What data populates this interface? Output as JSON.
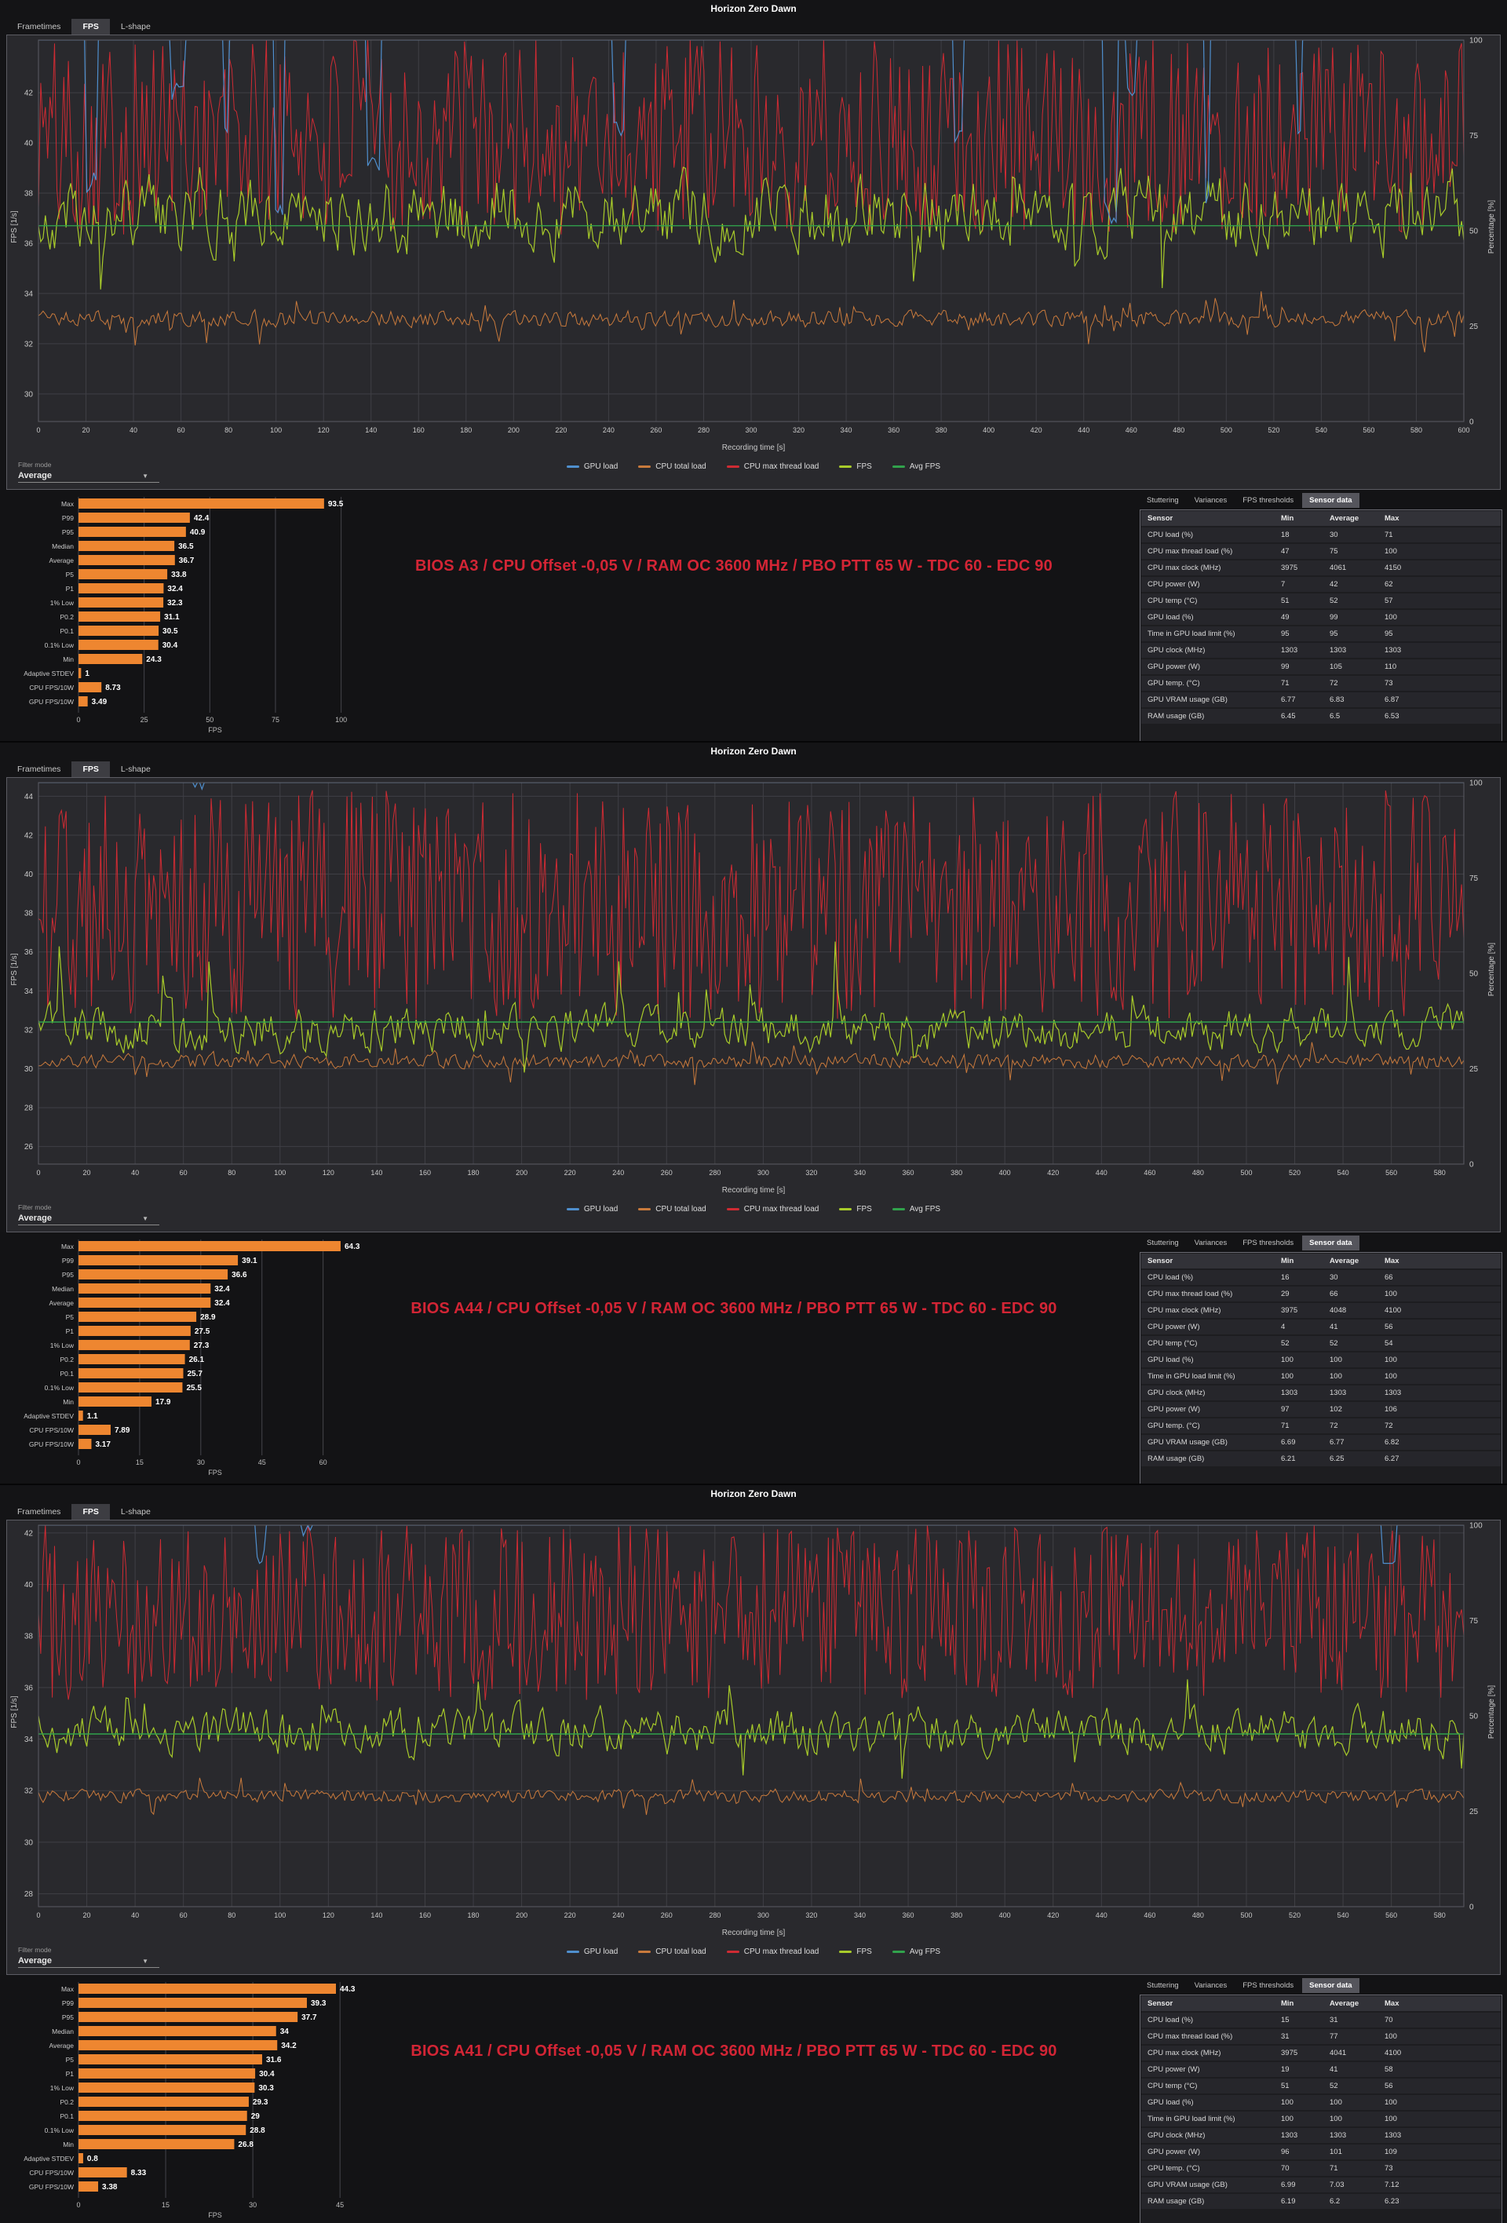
{
  "colors": {
    "gpu_load": "#4f8fce",
    "cpu_total": "#c97a3c",
    "cpu_max_thread": "#cf2b33",
    "fps": "#a8cb2a",
    "avg_fps": "#31a24c",
    "bar": "#ee8630",
    "annotation": "#d32535",
    "grid": "#3f3f45",
    "plot_border": "#5b5b62",
    "tick_text": "#c9c9c9"
  },
  "chart_data": [
    {
      "title": "Horizon Zero Dawn",
      "tabs": [
        "Frametimes",
        "FPS",
        "L-shape"
      ],
      "active_tab": "FPS",
      "annotation": "BIOS A3 / CPU Offset -0,05 V / RAM OC 3600 MHz / PBO PTT 65 W - TDC 60 - EDC 90",
      "filter_mode": {
        "label": "Filter mode",
        "value": "Average"
      },
      "line_chart": {
        "type": "line",
        "xlabel": "Recording time [s]",
        "ylabel": "FPS [1/s]",
        "y2label": "Percentage [%]",
        "xmax": 600,
        "xtick_step": 20,
        "points": 620,
        "yticks": [
          42,
          40,
          38,
          36,
          34,
          32,
          30
        ],
        "ylim": [
          28.9,
          44.1
        ],
        "y2ticks": [
          100,
          75,
          50,
          25,
          0
        ],
        "y2lim": [
          0,
          100
        ],
        "avg_fps": 36.7,
        "legend": [
          "GPU load",
          "CPU total load",
          "CPU max thread load",
          "FPS",
          "Avg FPS"
        ],
        "legend_colors": [
          "gpu_load",
          "cpu_total",
          "cpu_max_thread",
          "fps",
          "avg_fps"
        ],
        "series": [
          {
            "name": "CPU max thread load",
            "color": "cpu_max_thread",
            "axis": "right",
            "w": 1,
            "gen": {
              "kind": "noisy",
              "seed": 101,
              "base": 75,
              "amp": 26,
              "smooth": 0,
              "clamp": [
                47,
                100
              ]
            }
          },
          {
            "name": "CPU total load",
            "color": "cpu_total",
            "axis": "right",
            "w": 1,
            "gen": {
              "kind": "noisy",
              "seed": 102,
              "base": 27,
              "amp": 2.6,
              "smooth": 0.25,
              "spikeP": 0.06,
              "spikeLo": 17,
              "spikeHi": 37,
              "clamp": [
                14,
                45
              ]
            }
          },
          {
            "name": "FPS",
            "color": "fps",
            "axis": "left",
            "w": 1.2,
            "gen": {
              "kind": "noisy",
              "seed": 103,
              "base": 37.2,
              "amp": 2.4,
              "smooth": 0.5,
              "spikeP": 0.03,
              "spikeLo": 28,
              "spikeHi": 41.5,
              "clamp": [
                26.5,
                42.6
              ]
            }
          },
          {
            "name": "Avg FPS",
            "color": "avg_fps",
            "axis": "left",
            "w": 1.4,
            "gen": {
              "kind": "flat",
              "value": 36.7
            }
          },
          {
            "name": "GPU load",
            "color": "gpu_load",
            "axis": "right",
            "w": 1.2,
            "gen": {
              "kind": "pinned",
              "seed": 104,
              "level": 100,
              "dipP": 0.02,
              "dipLo": 52,
              "dipHi": 95
            }
          }
        ]
      },
      "bar_chart": {
        "type": "bar",
        "xlabel": "FPS",
        "xticks": [
          0,
          25,
          50,
          75,
          100
        ],
        "xmax": 104,
        "categories": [
          "Max",
          "P99",
          "P95",
          "Median",
          "Average",
          "P5",
          "P1",
          "1% Low",
          "P0.2",
          "P0.1",
          "0.1% Low",
          "Min",
          "Adaptive STDEV",
          "CPU FPS/10W",
          "GPU FPS/10W"
        ],
        "values": [
          93.5,
          42.4,
          40.9,
          36.5,
          36.7,
          33.8,
          32.4,
          32.3,
          31.1,
          30.5,
          30.4,
          24.3,
          1,
          8.73,
          3.49
        ]
      },
      "sensor": {
        "tabs": [
          "Stuttering",
          "Variances",
          "FPS thresholds",
          "Sensor data"
        ],
        "active_tab": "Sensor data",
        "headers": [
          "Sensor",
          "Min",
          "Average",
          "Max"
        ],
        "rows": [
          [
            "CPU load (%)",
            "18",
            "30",
            "71"
          ],
          [
            "CPU max thread load (%)",
            "47",
            "75",
            "100"
          ],
          [
            "CPU max clock (MHz)",
            "3975",
            "4061",
            "4150"
          ],
          [
            "CPU power (W)",
            "7",
            "42",
            "62"
          ],
          [
            "CPU temp (°C)",
            "51",
            "52",
            "57"
          ],
          [
            "GPU load (%)",
            "49",
            "99",
            "100"
          ],
          [
            "Time in GPU load limit (%)",
            "95",
            "95",
            "95"
          ],
          [
            "GPU clock (MHz)",
            "1303",
            "1303",
            "1303"
          ],
          [
            "GPU power (W)",
            "99",
            "105",
            "110"
          ],
          [
            "GPU temp. (°C)",
            "71",
            "72",
            "73"
          ],
          [
            "GPU VRAM usage (GB)",
            "6.77",
            "6.83",
            "6.87"
          ],
          [
            "RAM usage (GB)",
            "6.45",
            "6.5",
            "6.53"
          ]
        ]
      }
    },
    {
      "title": "Horizon Zero Dawn",
      "tabs": [
        "Frametimes",
        "FPS",
        "L-shape"
      ],
      "active_tab": "FPS",
      "annotation": "BIOS A44 / CPU Offset -0,05 V / RAM OC 3600 MHz / PBO PTT 65 W - TDC 60 - EDC 90",
      "filter_mode": {
        "label": "Filter mode",
        "value": "Average"
      },
      "line_chart": {
        "type": "line",
        "xlabel": "Recording time [s]",
        "ylabel": "FPS [1/s]",
        "y2label": "Percentage [%]",
        "xmax": 590,
        "xtick_step": 20,
        "points": 620,
        "yticks": [
          44,
          42,
          40,
          38,
          36,
          34,
          32,
          30,
          28,
          26
        ],
        "ylim": [
          25.1,
          44.7
        ],
        "y2ticks": [
          100,
          75,
          50,
          25,
          0
        ],
        "y2lim": [
          0,
          100
        ],
        "avg_fps": 32.4,
        "legend": [
          "GPU load",
          "CPU total load",
          "CPU max thread load",
          "FPS",
          "Avg FPS"
        ],
        "legend_colors": [
          "gpu_load",
          "cpu_total",
          "cpu_max_thread",
          "fps",
          "avg_fps"
        ],
        "series": [
          {
            "name": "CPU max thread load",
            "color": "cpu_max_thread",
            "axis": "right",
            "w": 1,
            "gen": {
              "kind": "noisy",
              "seed": 201,
              "base": 68,
              "amp": 30,
              "smooth": 0,
              "clamp": [
                37,
                100
              ]
            }
          },
          {
            "name": "CPU total load",
            "color": "cpu_total",
            "axis": "right",
            "w": 1,
            "gen": {
              "kind": "noisy",
              "seed": 202,
              "base": 27,
              "amp": 2.2,
              "smooth": 0.25,
              "spikeP": 0.05,
              "spikeLo": 18,
              "spikeHi": 34,
              "clamp": [
                15,
                42
              ]
            }
          },
          {
            "name": "FPS",
            "color": "fps",
            "axis": "left",
            "w": 1.2,
            "gen": {
              "kind": "noisy",
              "seed": 203,
              "base": 32,
              "amp": 1.8,
              "smooth": 0.5,
              "spikeP": 0.03,
              "spikeLo": 28,
              "spikeHi": 40.5,
              "clamp": [
                26.5,
                41.5
              ]
            }
          },
          {
            "name": "Avg FPS",
            "color": "avg_fps",
            "axis": "left",
            "w": 1.4,
            "gen": {
              "kind": "flat",
              "value": 32.4
            }
          },
          {
            "name": "GPU load",
            "color": "gpu_load",
            "axis": "right",
            "w": 1.2,
            "gen": {
              "kind": "pinned",
              "seed": 204,
              "level": 100,
              "dipP": 0.003,
              "dipLo": 96,
              "dipHi": 99
            }
          }
        ]
      },
      "bar_chart": {
        "type": "bar",
        "xlabel": "FPS",
        "xticks": [
          0,
          15,
          30,
          45,
          60
        ],
        "xmax": 67,
        "categories": [
          "Max",
          "P99",
          "P95",
          "Median",
          "Average",
          "P5",
          "P1",
          "1% Low",
          "P0.2",
          "P0.1",
          "0.1% Low",
          "Min",
          "Adaptive STDEV",
          "CPU FPS/10W",
          "GPU FPS/10W"
        ],
        "values": [
          64.3,
          39.1,
          36.6,
          32.4,
          32.4,
          28.9,
          27.5,
          27.3,
          26.1,
          25.7,
          25.5,
          17.9,
          1.1,
          7.89,
          3.17
        ]
      },
      "sensor": {
        "tabs": [
          "Stuttering",
          "Variances",
          "FPS thresholds",
          "Sensor data"
        ],
        "active_tab": "Sensor data",
        "headers": [
          "Sensor",
          "Min",
          "Average",
          "Max"
        ],
        "rows": [
          [
            "CPU load (%)",
            "16",
            "30",
            "66"
          ],
          [
            "CPU max thread load (%)",
            "29",
            "66",
            "100"
          ],
          [
            "CPU max clock (MHz)",
            "3975",
            "4048",
            "4100"
          ],
          [
            "CPU power (W)",
            "4",
            "41",
            "56"
          ],
          [
            "CPU temp (°C)",
            "52",
            "52",
            "54"
          ],
          [
            "GPU load (%)",
            "100",
            "100",
            "100"
          ],
          [
            "Time in GPU load limit (%)",
            "100",
            "100",
            "100"
          ],
          [
            "GPU clock (MHz)",
            "1303",
            "1303",
            "1303"
          ],
          [
            "GPU power (W)",
            "97",
            "102",
            "106"
          ],
          [
            "GPU temp. (°C)",
            "71",
            "72",
            "72"
          ],
          [
            "GPU VRAM usage (GB)",
            "6.69",
            "6.77",
            "6.82"
          ],
          [
            "RAM usage (GB)",
            "6.21",
            "6.25",
            "6.27"
          ]
        ]
      }
    },
    {
      "title": "Horizon Zero Dawn",
      "tabs": [
        "Frametimes",
        "FPS",
        "L-shape"
      ],
      "active_tab": "FPS",
      "annotation": "BIOS A41 / CPU Offset -0,05 V / RAM OC 3600 MHz / PBO PTT 65 W - TDC 60 - EDC 90",
      "filter_mode": {
        "label": "Filter mode",
        "value": "Average"
      },
      "line_chart": {
        "type": "line",
        "xlabel": "Recording time [s]",
        "ylabel": "FPS [1/s]",
        "y2label": "Percentage [%]",
        "xmax": 590,
        "xtick_step": 20,
        "points": 620,
        "yticks": [
          42,
          40,
          38,
          36,
          34,
          32,
          30,
          28
        ],
        "ylim": [
          27.5,
          42.3
        ],
        "y2ticks": [
          100,
          75,
          50,
          25,
          0
        ],
        "y2lim": [
          0,
          100
        ],
        "avg_fps": 34.2,
        "legend": [
          "GPU load",
          "CPU total load",
          "CPU max thread load",
          "FPS",
          "Avg FPS"
        ],
        "legend_colors": [
          "gpu_load",
          "cpu_total",
          "cpu_max_thread",
          "fps",
          "avg_fps"
        ],
        "series": [
          {
            "name": "CPU max thread load",
            "color": "cpu_max_thread",
            "axis": "right",
            "w": 1,
            "gen": {
              "kind": "noisy",
              "seed": 301,
              "base": 77,
              "amp": 23,
              "smooth": 0,
              "clamp": [
                48,
                100
              ]
            }
          },
          {
            "name": "CPU total load",
            "color": "cpu_total",
            "axis": "right",
            "w": 1,
            "gen": {
              "kind": "noisy",
              "seed": 302,
              "base": 29,
              "amp": 2,
              "smooth": 0.25,
              "spikeP": 0.05,
              "spikeLo": 22,
              "spikeHi": 36,
              "clamp": [
                18,
                40
              ]
            }
          },
          {
            "name": "FPS",
            "color": "fps",
            "axis": "left",
            "w": 1.2,
            "gen": {
              "kind": "noisy",
              "seed": 303,
              "base": 34.3,
              "amp": 1.4,
              "smooth": 0.5,
              "spikeP": 0.025,
              "spikeLo": 30,
              "spikeHi": 39.5,
              "clamp": [
                29,
                40.8
              ]
            }
          },
          {
            "name": "Avg FPS",
            "color": "avg_fps",
            "axis": "left",
            "w": 1.4,
            "gen": {
              "kind": "flat",
              "value": 34.2
            }
          },
          {
            "name": "GPU load",
            "color": "gpu_load",
            "axis": "right",
            "w": 1.2,
            "gen": {
              "kind": "pinned",
              "seed": 304,
              "level": 100,
              "dipP": 0.004,
              "dipLo": 90,
              "dipHi": 99
            }
          }
        ]
      },
      "bar_chart": {
        "type": "bar",
        "xlabel": "FPS",
        "xticks": [
          0,
          15,
          30,
          45
        ],
        "xmax": 47,
        "categories": [
          "Max",
          "P99",
          "P95",
          "Median",
          "Average",
          "P5",
          "P1",
          "1% Low",
          "P0.2",
          "P0.1",
          "0.1% Low",
          "Min",
          "Adaptive STDEV",
          "CPU FPS/10W",
          "GPU FPS/10W"
        ],
        "values": [
          44.3,
          39.3,
          37.7,
          34,
          34.2,
          31.6,
          30.4,
          30.3,
          29.3,
          29,
          28.8,
          26.8,
          0.8,
          8.33,
          3.38
        ]
      },
      "sensor": {
        "tabs": [
          "Stuttering",
          "Variances",
          "FPS thresholds",
          "Sensor data"
        ],
        "active_tab": "Sensor data",
        "headers": [
          "Sensor",
          "Min",
          "Average",
          "Max"
        ],
        "rows": [
          [
            "CPU load (%)",
            "15",
            "31",
            "70"
          ],
          [
            "CPU max thread load (%)",
            "31",
            "77",
            "100"
          ],
          [
            "CPU max clock (MHz)",
            "3975",
            "4041",
            "4100"
          ],
          [
            "CPU power (W)",
            "19",
            "41",
            "58"
          ],
          [
            "CPU temp (°C)",
            "51",
            "52",
            "56"
          ],
          [
            "GPU load (%)",
            "100",
            "100",
            "100"
          ],
          [
            "Time in GPU load limit (%)",
            "100",
            "100",
            "100"
          ],
          [
            "GPU clock (MHz)",
            "1303",
            "1303",
            "1303"
          ],
          [
            "GPU power (W)",
            "96",
            "101",
            "109"
          ],
          [
            "GPU temp. (°C)",
            "70",
            "71",
            "73"
          ],
          [
            "GPU VRAM usage (GB)",
            "6.99",
            "7.03",
            "7.12"
          ],
          [
            "RAM usage (GB)",
            "6.19",
            "6.2",
            "6.23"
          ]
        ]
      }
    }
  ]
}
